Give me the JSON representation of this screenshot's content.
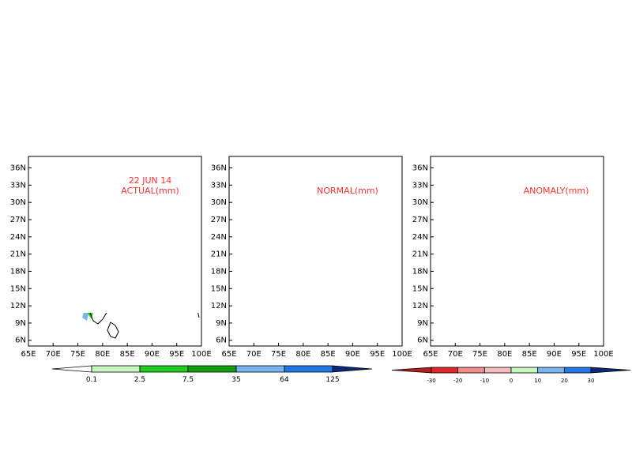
{
  "panels": [
    {
      "id": "actual",
      "annotations": [
        "22 JUN 14",
        "ACTUAL(mm)"
      ]
    },
    {
      "id": "normal",
      "annotations": [
        "NORMAL(mm)"
      ]
    },
    {
      "id": "anomaly",
      "annotations": [
        "ANOMALY(mm)"
      ]
    }
  ],
  "axes": {
    "x_ticks": [
      "65E",
      "70E",
      "75E",
      "80E",
      "85E",
      "90E",
      "95E",
      "100E"
    ],
    "y_ticks": [
      "36N",
      "33N",
      "30N",
      "27N",
      "24N",
      "21N",
      "18N",
      "15N",
      "12N",
      "9N",
      "6N"
    ],
    "lon_range": [
      65,
      100
    ],
    "lat_range": [
      5,
      38
    ]
  },
  "colorbar_rain": {
    "labels": [
      "0.1",
      "2.5",
      "7.5",
      "35",
      "64",
      "125"
    ],
    "colors": [
      "#ffffff",
      "#c8f5c0",
      "#1fcc1f",
      "#0e9e0e",
      "#78b4f0",
      "#1e78e6",
      "#0a2a78"
    ]
  },
  "colorbar_anomaly": {
    "labels": [
      "-30",
      "-20",
      "-10",
      "0",
      "10",
      "20",
      "30"
    ],
    "colors": [
      "#b41e1e",
      "#e02828",
      "#f08c8c",
      "#f7bcbc",
      "#c8f5c0",
      "#78b4f0",
      "#1e78e6",
      "#0a2a78"
    ]
  }
}
